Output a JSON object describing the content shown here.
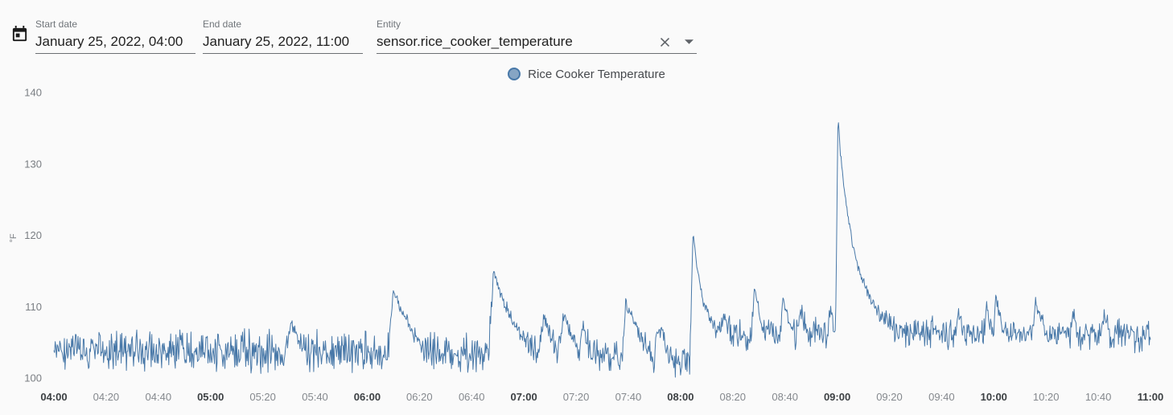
{
  "header": {
    "start_field": {
      "label": "Start date",
      "value": "January 25, 2022, 04:00"
    },
    "end_field": {
      "label": "End date",
      "value": "January 25, 2022, 11:00"
    },
    "entity_field": {
      "label": "Entity",
      "value": "sensor.rice_cooker_temperature"
    }
  },
  "icons": {
    "calendar": "calendar-icon",
    "clear": "clear-x-icon",
    "caret": "dropdown-caret-icon"
  },
  "legend": {
    "label": "Rice Cooker Temperature"
  },
  "chart_data": {
    "type": "line",
    "title": "",
    "xlabel": "",
    "ylabel": "°F",
    "grid": false,
    "legend_position": "top-center",
    "x_start_time": "04:00",
    "x_end_time": "11:00",
    "xlim_minutes": [
      0,
      420
    ],
    "ylim": [
      100,
      140
    ],
    "y_ticks": [
      100,
      110,
      120,
      130,
      140
    ],
    "x_ticks": [
      {
        "t": 0,
        "label": "04:00",
        "bold": true
      },
      {
        "t": 20,
        "label": "04:20",
        "bold": false
      },
      {
        "t": 40,
        "label": "04:40",
        "bold": false
      },
      {
        "t": 60,
        "label": "05:00",
        "bold": true
      },
      {
        "t": 80,
        "label": "05:20",
        "bold": false
      },
      {
        "t": 100,
        "label": "05:40",
        "bold": false
      },
      {
        "t": 120,
        "label": "06:00",
        "bold": true
      },
      {
        "t": 140,
        "label": "06:20",
        "bold": false
      },
      {
        "t": 160,
        "label": "06:40",
        "bold": false
      },
      {
        "t": 180,
        "label": "07:00",
        "bold": true
      },
      {
        "t": 200,
        "label": "07:20",
        "bold": false
      },
      {
        "t": 220,
        "label": "07:40",
        "bold": false
      },
      {
        "t": 240,
        "label": "08:00",
        "bold": true
      },
      {
        "t": 260,
        "label": "08:20",
        "bold": false
      },
      {
        "t": 280,
        "label": "08:40",
        "bold": false
      },
      {
        "t": 300,
        "label": "09:00",
        "bold": true
      },
      {
        "t": 320,
        "label": "09:20",
        "bold": false
      },
      {
        "t": 340,
        "label": "09:40",
        "bold": false
      },
      {
        "t": 360,
        "label": "10:00",
        "bold": true
      },
      {
        "t": 380,
        "label": "10:20",
        "bold": false
      },
      {
        "t": 400,
        "label": "10:40",
        "bold": false
      },
      {
        "t": 420,
        "label": "11:00",
        "bold": true
      }
    ],
    "series": [
      {
        "name": "Rice Cooker Temperature",
        "color": "#4878a8",
        "noise": {
          "model": "triangular",
          "seed": 9,
          "step_minutes": 0.25
        },
        "keypoints": [
          [
            0,
            103.7,
            3.4
          ],
          [
            88,
            103.7,
            3.4
          ],
          [
            91,
            107.6,
            1.2
          ],
          [
            94,
            105.3,
            1.6
          ],
          [
            98,
            103.7,
            3.4
          ],
          [
            128,
            103.5,
            3.4
          ],
          [
            130,
            112.5,
            0.8
          ],
          [
            133,
            109.3,
            1.0
          ],
          [
            137,
            106.8,
            1.6
          ],
          [
            141,
            104.6,
            2.4
          ],
          [
            145,
            103.4,
            3.4
          ],
          [
            166.5,
            103.3,
            3.2
          ],
          [
            168.5,
            115.2,
            0.8
          ],
          [
            172,
            110.8,
            1.0
          ],
          [
            176,
            107.8,
            1.4
          ],
          [
            181,
            105.3,
            2.0
          ],
          [
            185.5,
            103.6,
            3.2
          ],
          [
            187.8,
            108.6,
            1.0
          ],
          [
            190.5,
            105.8,
            1.6
          ],
          [
            193,
            103.8,
            3.2
          ],
          [
            195.3,
            109.0,
            1.0
          ],
          [
            198,
            105.9,
            1.6
          ],
          [
            201,
            103.9,
            3.0
          ],
          [
            202.3,
            107.4,
            1.4
          ],
          [
            205,
            104.0,
            3.0
          ],
          [
            217.5,
            102.6,
            2.8
          ],
          [
            219,
            110.6,
            0.8
          ],
          [
            222,
            108.0,
            1.2
          ],
          [
            226,
            105.2,
            1.8
          ],
          [
            229.5,
            103.2,
            3.0
          ],
          [
            233,
            107.0,
            1.6
          ],
          [
            236,
            102.6,
            2.8
          ],
          [
            243.5,
            101.8,
            2.6
          ],
          [
            244.8,
            120.2,
            0.6
          ],
          [
            246.5,
            115.0,
            0.8
          ],
          [
            248.5,
            111.2,
            1.0
          ],
          [
            251,
            108.2,
            1.4
          ],
          [
            254,
            106.5,
            2.0
          ],
          [
            257.5,
            108.3,
            1.6
          ],
          [
            259.5,
            106.2,
            2.6
          ],
          [
            267,
            105.8,
            2.6
          ],
          [
            268.3,
            112.3,
            0.8
          ],
          [
            271,
            107.6,
            1.6
          ],
          [
            273,
            106.0,
            2.6
          ],
          [
            278,
            105.8,
            2.6
          ],
          [
            279.3,
            111.0,
            0.8
          ],
          [
            282,
            107.2,
            1.6
          ],
          [
            284,
            106.0,
            2.6
          ],
          [
            286.3,
            109.4,
            1.2
          ],
          [
            288.5,
            106.1,
            2.6
          ],
          [
            296.5,
            106.0,
            2.4
          ],
          [
            297.6,
            109.9,
            1.2
          ],
          [
            298.6,
            107.0,
            1.6
          ],
          [
            299.4,
            106.6,
            1.0
          ],
          [
            300.3,
            136.6,
            0.5
          ],
          [
            301.2,
            131.8,
            0.7
          ],
          [
            302.6,
            126.9,
            0.7
          ],
          [
            304.2,
            122.4,
            0.8
          ],
          [
            306,
            118.6,
            0.9
          ],
          [
            308,
            115.6,
            1.0
          ],
          [
            310.5,
            112.9,
            1.1
          ],
          [
            313.5,
            110.4,
            1.3
          ],
          [
            317,
            108.6,
            1.6
          ],
          [
            321,
            107.3,
            2.0
          ],
          [
            326,
            106.4,
            2.6
          ],
          [
            345.5,
            106.2,
            2.6
          ],
          [
            346.3,
            109.2,
            1.4
          ],
          [
            348,
            106.4,
            2.6
          ],
          [
            356.3,
            106.2,
            2.4
          ],
          [
            357.2,
            110.2,
            0.9
          ],
          [
            358.5,
            107.6,
            1.4
          ],
          [
            360.0,
            106.6,
            1.6
          ],
          [
            360.8,
            111.4,
            0.8
          ],
          [
            362.5,
            108.0,
            1.4
          ],
          [
            365,
            106.3,
            2.6
          ],
          [
            374.8,
            106.2,
            2.4
          ],
          [
            376,
            111.0,
            0.8
          ],
          [
            378,
            107.6,
            1.6
          ],
          [
            380.5,
            106.2,
            2.6
          ],
          [
            389.5,
            106.1,
            2.6
          ],
          [
            390.3,
            109.0,
            1.4
          ],
          [
            392,
            106.2,
            2.6
          ],
          [
            401.5,
            106.0,
            2.6
          ],
          [
            402.3,
            108.9,
            1.4
          ],
          [
            404,
            106.1,
            2.6
          ],
          [
            420,
            105.9,
            2.6
          ]
        ]
      }
    ]
  }
}
